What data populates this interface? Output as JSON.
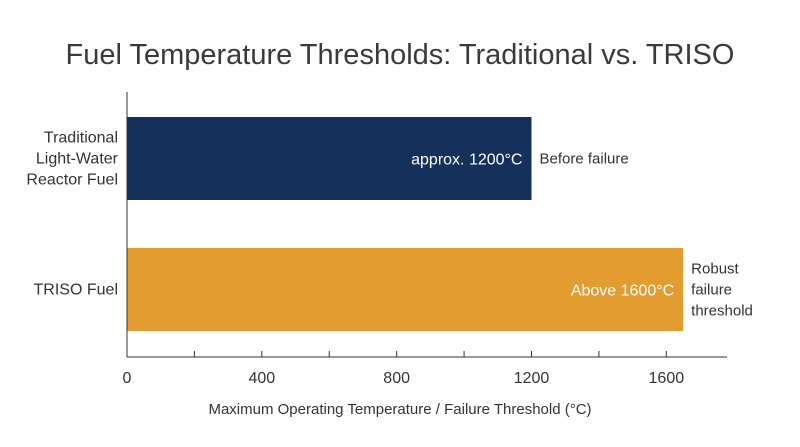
{
  "chart_data": {
    "type": "bar",
    "orientation": "horizontal",
    "title": "Fuel Temperature Thresholds: Traditional vs. TRISO",
    "xlabel": "Maximum Operating Temperature / Failure Threshold (°C)",
    "ylabel": "",
    "xlim": [
      0,
      1780
    ],
    "xticks": [
      0,
      400,
      800,
      1200,
      1600
    ],
    "minor_ticks": [
      200,
      600,
      1000,
      1400
    ],
    "grid": false,
    "legend": "none",
    "categories": [
      [
        "Traditional",
        "Light-Water",
        "Reactor Fuel"
      ],
      [
        "TRISO Fuel"
      ]
    ],
    "values": [
      1200,
      1650
    ],
    "colors": [
      "#15305a",
      "#e39c2f"
    ],
    "data_labels": [
      "approx. 1200°C",
      "Above 1600°C"
    ],
    "annotations": [
      [
        "Before failure"
      ],
      [
        "Robust",
        "failure",
        "threshold"
      ]
    ]
  }
}
